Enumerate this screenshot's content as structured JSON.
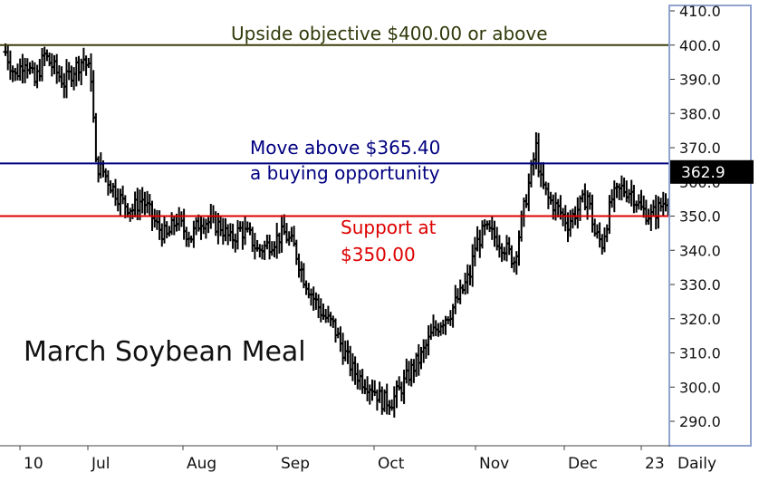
{
  "chart_data": {
    "type": "bar",
    "subtype": "ohlc-daily",
    "title": "March Soybean Meal",
    "x_tick_labels": [
      "10",
      "Jul",
      "Aug",
      "Sep",
      "Oct",
      "Nov",
      "Dec",
      "23",
      "Daily"
    ],
    "y_tick_labels": [
      "410.0",
      "400.0",
      "390.0",
      "380.0",
      "370.0",
      "360.0",
      "350.0",
      "340.0",
      "330.0",
      "320.0",
      "310.0",
      "300.0",
      "290.0"
    ],
    "ylim": [
      285,
      411
    ],
    "grid": false,
    "last_price": "362.9",
    "last_value": 362.9,
    "levels": [
      {
        "value": 400.0,
        "color": "#3d3d0a",
        "text": [
          "Upside objective $400.00 or above"
        ]
      },
      {
        "value": 365.4,
        "color": "#000080",
        "text": [
          "Move above $365.40",
          "a buying opportunity"
        ]
      },
      {
        "value": 350.0,
        "color": "#dd0000",
        "text": [
          "Support at",
          "$350.00"
        ]
      }
    ],
    "close_path": [
      [
        0,
        398
      ],
      [
        4,
        391
      ],
      [
        8,
        396
      ],
      [
        12,
        389
      ],
      [
        16,
        397
      ],
      [
        20,
        393
      ],
      [
        24,
        389
      ],
      [
        28,
        393
      ],
      [
        32,
        396
      ],
      [
        35,
        391
      ],
      [
        36,
        378
      ],
      [
        37,
        365
      ],
      [
        40,
        363
      ],
      [
        44,
        358
      ],
      [
        48,
        354
      ],
      [
        52,
        352
      ],
      [
        56,
        355
      ],
      [
        59,
        351
      ],
      [
        62,
        347
      ],
      [
        66,
        344
      ],
      [
        70,
        349
      ],
      [
        73,
        346
      ],
      [
        76,
        344
      ],
      [
        80,
        349
      ],
      [
        84,
        348
      ],
      [
        88,
        347
      ],
      [
        92,
        343
      ],
      [
        96,
        346
      ],
      [
        100,
        344
      ],
      [
        103,
        340
      ],
      [
        106,
        341
      ],
      [
        110,
        343
      ],
      [
        114,
        345
      ],
      [
        118,
        341
      ],
      [
        122,
        332
      ],
      [
        126,
        326
      ],
      [
        130,
        321
      ],
      [
        134,
        318
      ],
      [
        138,
        311
      ],
      [
        142,
        305
      ],
      [
        146,
        302
      ],
      [
        150,
        300
      ],
      [
        154,
        296
      ],
      [
        158,
        296
      ],
      [
        162,
        300
      ],
      [
        166,
        305
      ],
      [
        170,
        309
      ],
      [
        174,
        315
      ],
      [
        178,
        319
      ],
      [
        182,
        322
      ],
      [
        186,
        327
      ],
      [
        190,
        333
      ],
      [
        192,
        341
      ],
      [
        196,
        346
      ],
      [
        200,
        344
      ],
      [
        204,
        341
      ],
      [
        208,
        337
      ],
      [
        212,
        352
      ],
      [
        215,
        363
      ],
      [
        217,
        370
      ],
      [
        219,
        360
      ],
      [
        222,
        355
      ],
      [
        226,
        352
      ],
      [
        230,
        348
      ],
      [
        234,
        352
      ],
      [
        238,
        356
      ],
      [
        241,
        345
      ],
      [
        244,
        342
      ],
      [
        248,
        355
      ],
      [
        252,
        358
      ],
      [
        256,
        357
      ],
      [
        260,
        352
      ],
      [
        264,
        350
      ],
      [
        268,
        353
      ],
      [
        272,
        357
      ],
      [
        276,
        360
      ]
    ]
  }
}
